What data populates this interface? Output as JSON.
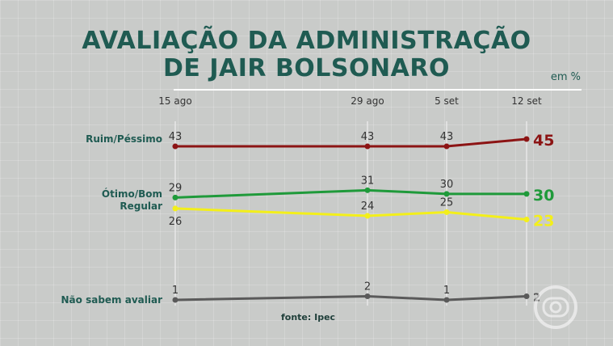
{
  "title_line1": "AVALIAÇÃO DA ADMINISTRAÇÃO",
  "title_line2": "DE JAIR BOLSONARO",
  "unit": "em %",
  "source": "fonte: Ipec",
  "chart_data": {
    "type": "line",
    "categories": [
      "15 ago",
      "29 ago",
      "5 set",
      "12 set"
    ],
    "series": [
      {
        "name": "Ruim/Péssimo",
        "values": [
          43,
          43,
          43,
          45
        ],
        "color": "#8c1414"
      },
      {
        "name": "Ótimo/Bom",
        "values": [
          29,
          31,
          30,
          30
        ],
        "color": "#1f9a3a"
      },
      {
        "name": "Regular",
        "values": [
          26,
          24,
          25,
          23
        ],
        "color": "#f3ef1a"
      },
      {
        "name": "Não sabem avaliar",
        "values": [
          1,
          2,
          1,
          2
        ],
        "color": "#5a5a5a"
      }
    ],
    "ylim": [
      0,
      50
    ],
    "grid": true
  }
}
